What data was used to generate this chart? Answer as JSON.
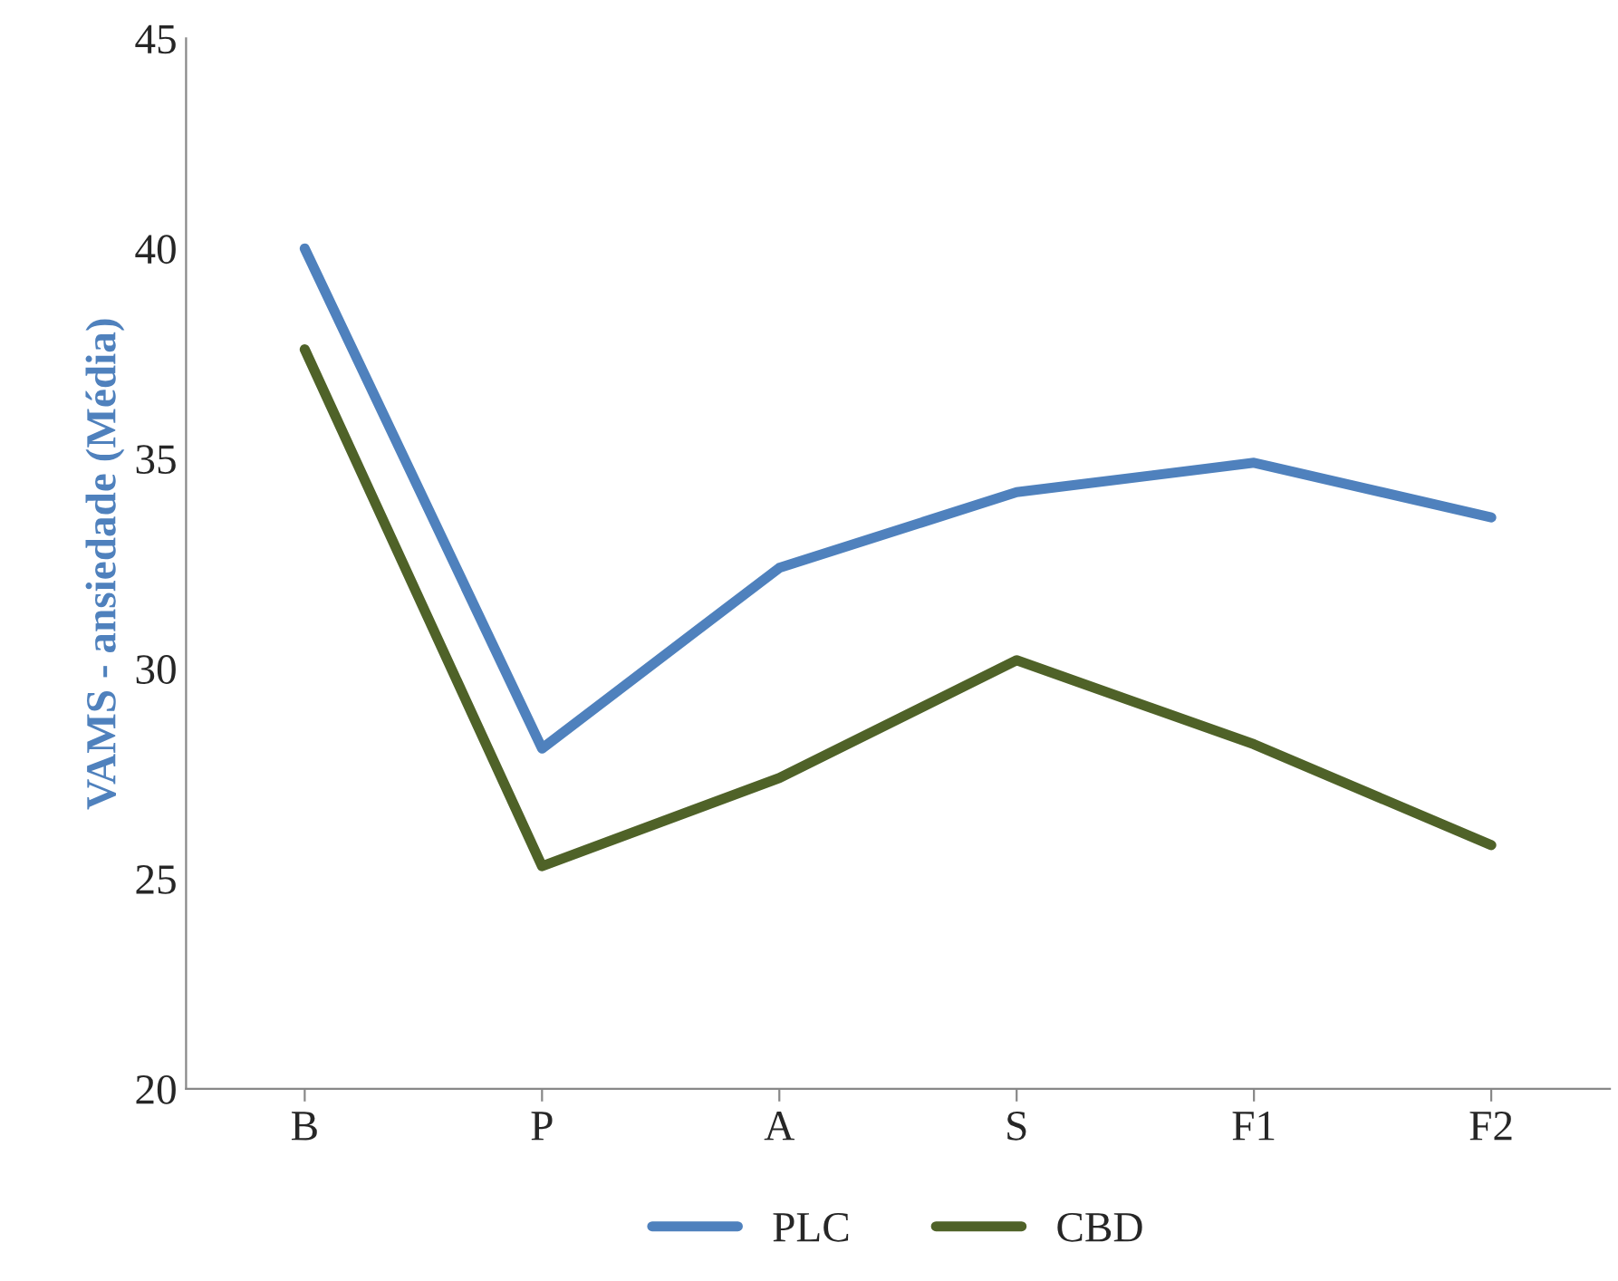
{
  "chart_data": {
    "type": "line",
    "ylabel": "VAMS - ansiedade (Média)",
    "categories": [
      "B",
      "P",
      "A",
      "S",
      "F1",
      "F2"
    ],
    "series": [
      {
        "name": "PLC",
        "color": "#4f81bd",
        "values": [
          40,
          28.1,
          32.4,
          34.2,
          34.9,
          33.6
        ]
      },
      {
        "name": "CBD",
        "color": "#4f6228",
        "values": [
          37.6,
          25.3,
          27.4,
          30.2,
          28.2,
          25.8
        ]
      }
    ],
    "ylim": [
      20,
      45
    ],
    "yticks": [
      20,
      25,
      30,
      35,
      40,
      45
    ],
    "grid": false,
    "legend": "bottom",
    "marker": "none",
    "line_style": "solid"
  }
}
